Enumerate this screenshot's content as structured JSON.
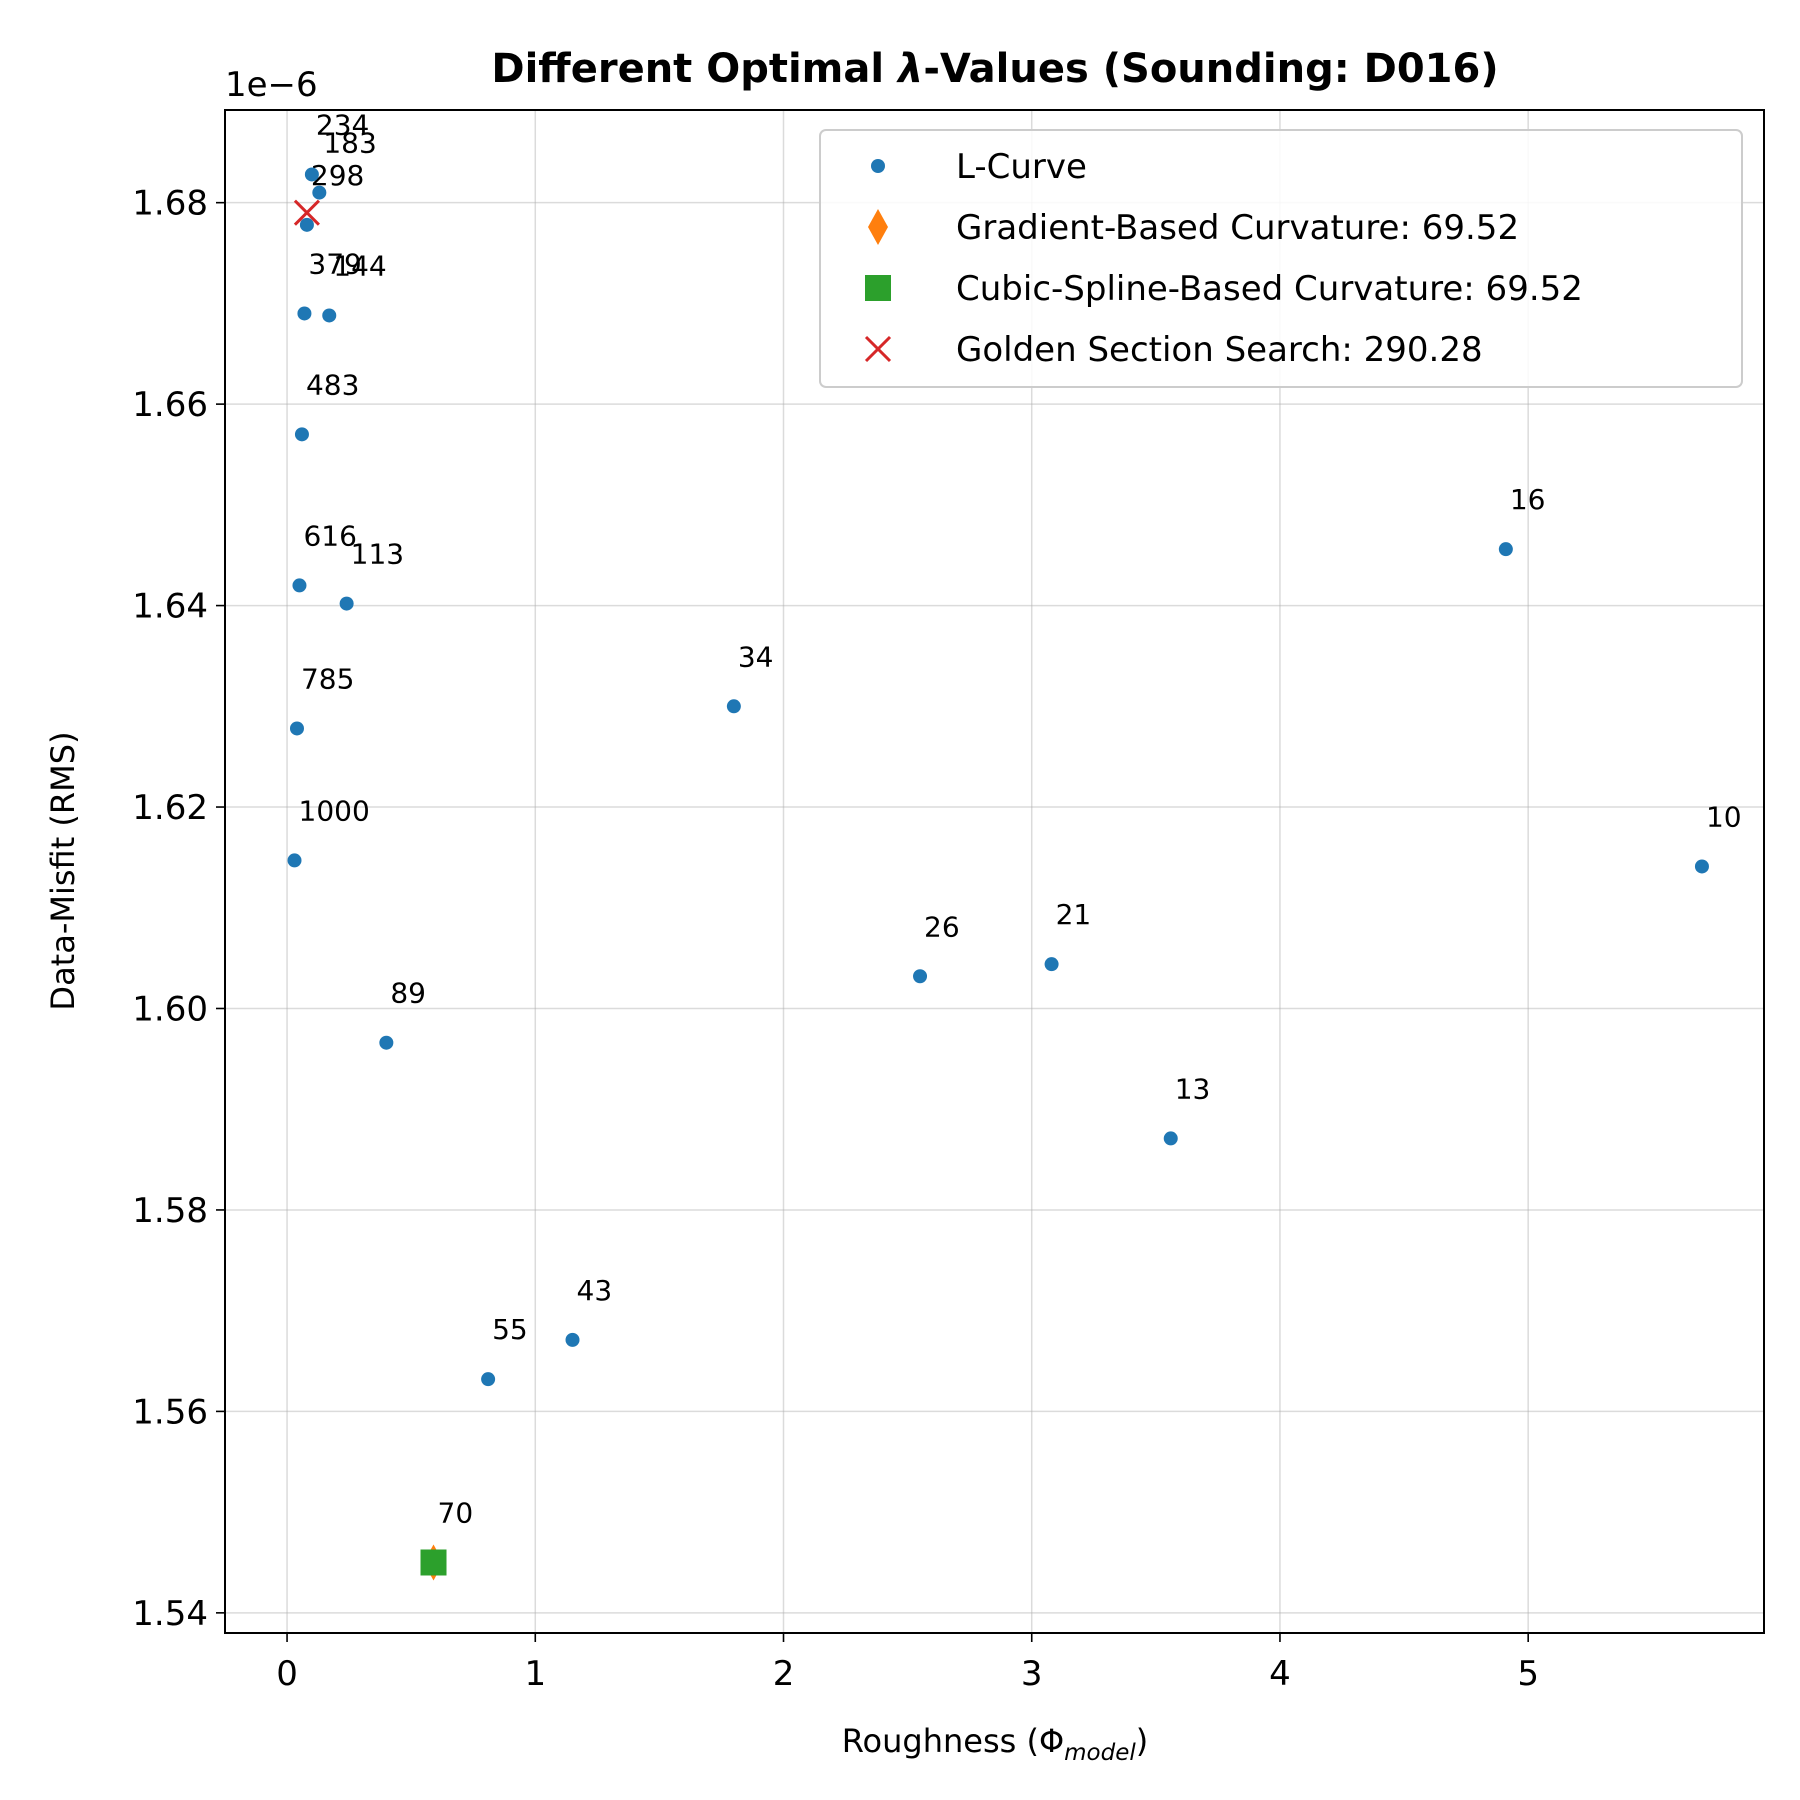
{
  "chart_data": {
    "type": "scatter",
    "title_prefix": "Different Optimal ",
    "title_symbol": "λ",
    "title_suffix": "-Values (Sounding: D016)",
    "xlabel_main": "Roughness (Φ",
    "xlabel_sub": "model",
    "xlabel_close": ")",
    "ylabel": "Data-Misfit (RMS)",
    "y_multiplier": "1e−6",
    "xlim": [
      -0.25,
      5.95
    ],
    "ylim": [
      1.538,
      1.6892
    ],
    "x_ticks": [
      0,
      1,
      2,
      3,
      4,
      5
    ],
    "x_tick_labels": [
      "0",
      "1",
      "2",
      "3",
      "4",
      "5"
    ],
    "y_ticks": [
      1.54,
      1.56,
      1.58,
      1.6,
      1.62,
      1.64,
      1.66,
      1.68
    ],
    "y_tick_labels": [
      "1.54",
      "1.56",
      "1.58",
      "1.60",
      "1.62",
      "1.64",
      "1.66",
      "1.68"
    ],
    "grid": true,
    "legend_position": "top-right",
    "series": [
      {
        "name": "L-Curve",
        "marker": "dot",
        "color": "#1f77b4",
        "points": [
          {
            "x": 0.03,
            "y": 1.6147,
            "label": "1000"
          },
          {
            "x": 0.04,
            "y": 1.6278,
            "label": "785"
          },
          {
            "x": 0.05,
            "y": 1.642,
            "label": "616"
          },
          {
            "x": 0.06,
            "y": 1.657,
            "label": "483"
          },
          {
            "x": 0.07,
            "y": 1.669,
            "label": "379"
          },
          {
            "x": 0.08,
            "y": 1.6778,
            "label": "298"
          },
          {
            "x": 0.1,
            "y": 1.6828,
            "label": "234"
          },
          {
            "x": 0.13,
            "y": 1.681,
            "label": "183"
          },
          {
            "x": 0.17,
            "y": 1.6688,
            "label": "144"
          },
          {
            "x": 0.24,
            "y": 1.6402,
            "label": "113"
          },
          {
            "x": 0.4,
            "y": 1.5966,
            "label": "89"
          },
          {
            "x": 0.59,
            "y": 1.545,
            "label": "70"
          },
          {
            "x": 0.81,
            "y": 1.5632,
            "label": "55"
          },
          {
            "x": 1.15,
            "y": 1.5671,
            "label": "43"
          },
          {
            "x": 1.8,
            "y": 1.63,
            "label": "34"
          },
          {
            "x": 2.55,
            "y": 1.6032,
            "label": "26"
          },
          {
            "x": 3.08,
            "y": 1.6044,
            "label": "21"
          },
          {
            "x": 3.56,
            "y": 1.5871,
            "label": "13"
          },
          {
            "x": 4.91,
            "y": 1.6456,
            "label": "16"
          },
          {
            "x": 5.7,
            "y": 1.6141,
            "label": "10"
          }
        ]
      },
      {
        "name": "Gradient-Based Curvature: 69.52",
        "marker": "thin-diamond",
        "color": "#ff7f0e",
        "points": [
          {
            "x": 0.59,
            "y": 1.545
          }
        ]
      },
      {
        "name": "Cubic-Spline-Based Curvature: 69.52",
        "marker": "square",
        "color": "#2ca02c",
        "points": [
          {
            "x": 0.59,
            "y": 1.545
          }
        ]
      },
      {
        "name": "Golden Section Search: 290.28",
        "marker": "x",
        "color": "#d62728",
        "points": [
          {
            "x": 0.08,
            "y": 1.679
          }
        ]
      }
    ]
  }
}
